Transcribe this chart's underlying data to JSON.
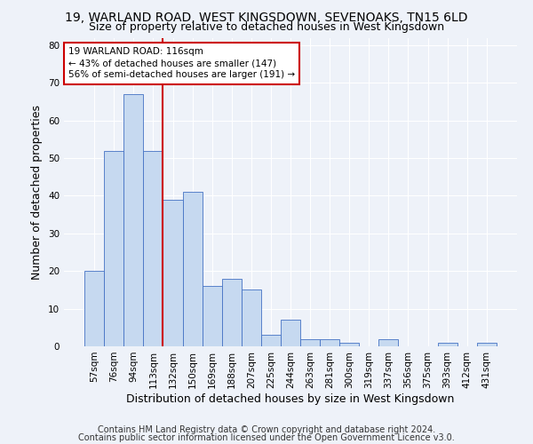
{
  "title1": "19, WARLAND ROAD, WEST KINGSDOWN, SEVENOAKS, TN15 6LD",
  "title2": "Size of property relative to detached houses in West Kingsdown",
  "xlabel": "Distribution of detached houses by size in West Kingsdown",
  "ylabel": "Number of detached properties",
  "categories": [
    "57sqm",
    "76sqm",
    "94sqm",
    "113sqm",
    "132sqm",
    "150sqm",
    "169sqm",
    "188sqm",
    "207sqm",
    "225sqm",
    "244sqm",
    "263sqm",
    "281sqm",
    "300sqm",
    "319sqm",
    "337sqm",
    "356sqm",
    "375sqm",
    "393sqm",
    "412sqm",
    "431sqm"
  ],
  "values": [
    20,
    52,
    67,
    52,
    39,
    41,
    16,
    18,
    15,
    3,
    7,
    2,
    2,
    1,
    0,
    2,
    0,
    0,
    1,
    0,
    1
  ],
  "bar_color": "#c6d9f0",
  "bar_edge_color": "#4472c4",
  "highlight_index": 3,
  "highlight_line_color": "#cc0000",
  "ylim": [
    0,
    82
  ],
  "yticks": [
    0,
    10,
    20,
    30,
    40,
    50,
    60,
    70,
    80
  ],
  "annotation_line1": "19 WARLAND ROAD: 116sqm",
  "annotation_line2": "← 43% of detached houses are smaller (147)",
  "annotation_line3": "56% of semi-detached houses are larger (191) →",
  "annotation_box_color": "#cc0000",
  "footer1": "Contains HM Land Registry data © Crown copyright and database right 2024.",
  "footer2": "Contains public sector information licensed under the Open Government Licence v3.0.",
  "background_color": "#eef2f9",
  "grid_color": "#ffffff",
  "title_fontsize": 10,
  "subtitle_fontsize": 9,
  "axis_label_fontsize": 9,
  "tick_fontsize": 7.5,
  "annotation_fontsize": 7.5,
  "footer_fontsize": 7
}
